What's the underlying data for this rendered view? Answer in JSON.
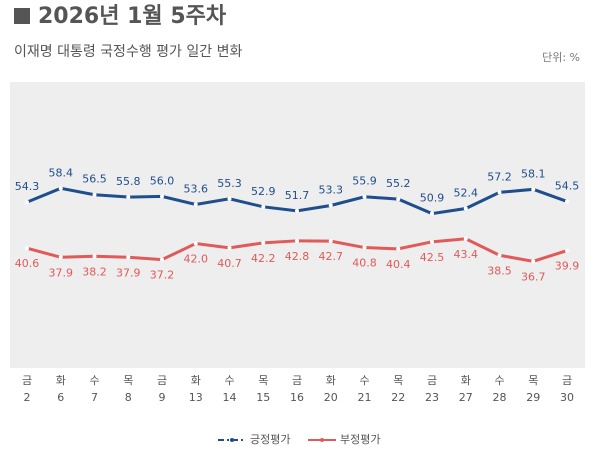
{
  "chart_data": {
    "type": "line",
    "title": "2026년 1월 5주차",
    "subtitle": "이재명 대통령 국정수행 평가 일간 변화",
    "unit": "단위: %",
    "categories": [
      [
        "금",
        "2"
      ],
      [
        "화",
        "6"
      ],
      [
        "수",
        "7"
      ],
      [
        "목",
        "8"
      ],
      [
        "금",
        "9"
      ],
      [
        "화",
        "13"
      ],
      [
        "수",
        "14"
      ],
      [
        "목",
        "15"
      ],
      [
        "금",
        "16"
      ],
      [
        "화",
        "20"
      ],
      [
        "수",
        "21"
      ],
      [
        "목",
        "22"
      ],
      [
        "금",
        "23"
      ],
      [
        "화",
        "27"
      ],
      [
        "수",
        "28"
      ],
      [
        "목",
        "29"
      ],
      [
        "금",
        "30"
      ]
    ],
    "series": [
      {
        "name": "긍정평가",
        "color": "#1f4e8c",
        "values": [
          54.3,
          58.4,
          56.5,
          55.8,
          56.0,
          53.6,
          55.3,
          52.9,
          51.7,
          53.3,
          55.9,
          55.2,
          50.9,
          52.4,
          57.2,
          58.1,
          54.5
        ],
        "value_labels": [
          "54.3",
          "58.4",
          "56.5",
          "55.8",
          "56.0",
          "53.6",
          "55.3",
          "52.9",
          "51.7",
          "53.3",
          "55.9",
          "55.2",
          "50.9",
          "52.4",
          "57.2",
          "58.1",
          "54.5"
        ]
      },
      {
        "name": "부정평가",
        "color": "#e05a5a",
        "values": [
          40.6,
          37.9,
          38.2,
          37.9,
          37.2,
          42.0,
          40.7,
          42.2,
          42.8,
          42.7,
          40.8,
          40.4,
          42.5,
          43.4,
          38.5,
          36.7,
          39.9
        ],
        "value_labels": [
          "40.6",
          "37.9",
          "38.2",
          "37.9",
          "37.2",
          "42.0",
          "40.7",
          "42.2",
          "42.8",
          "42.7",
          "40.8",
          "40.4",
          "42.5",
          "43.4",
          "38.5",
          "36.7",
          "39.9"
        ]
      }
    ],
    "ylim": [
      5,
      90
    ]
  }
}
